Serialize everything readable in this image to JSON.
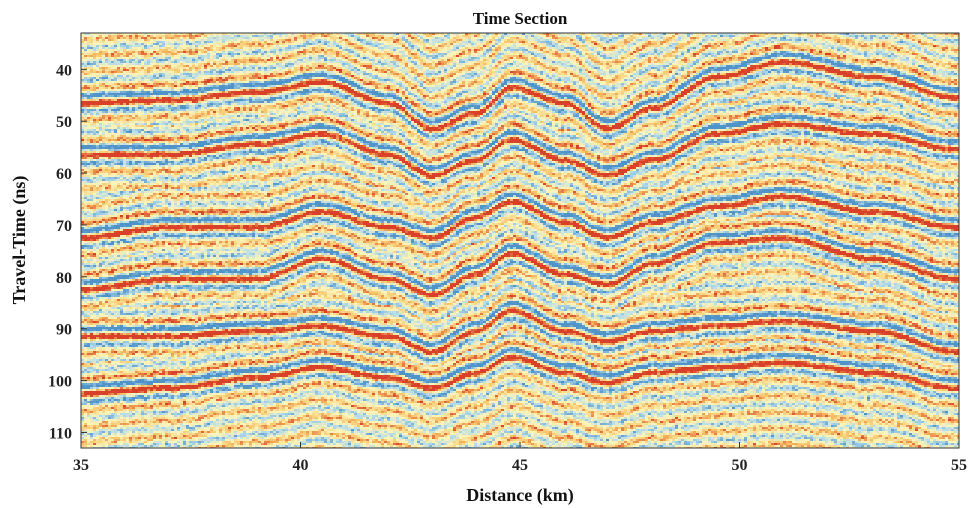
{
  "chart_data": {
    "type": "heatmap",
    "title": "Time Section",
    "xlabel": "Distance (km)",
    "ylabel": "Travel-Time (ns)",
    "xlim": [
      35,
      55
    ],
    "ylim": [
      33,
      113
    ],
    "y_reversed": true,
    "xticks": [
      35,
      40,
      45,
      50,
      55
    ],
    "yticks": [
      40,
      50,
      60,
      70,
      80,
      90,
      100,
      110
    ],
    "grid": false,
    "legend": "none",
    "colormap": {
      "negative": "#4f93c8",
      "light_negative": "#b6dcea",
      "background": "#fbf3b8",
      "light_positive": "#f7c56a",
      "positive": "#d8402a"
    },
    "reflectors": {
      "x": [
        35,
        37,
        39,
        40.5,
        42,
        43,
        44,
        44.8,
        46,
        47,
        48,
        49.5,
        51,
        53,
        55
      ],
      "horizons": [
        {
          "t": [
            46,
            45.5,
            44,
            42,
            46,
            51,
            48,
            43,
            46,
            51,
            47,
            41,
            38,
            41,
            45
          ]
        },
        {
          "t": [
            56,
            56,
            54,
            52,
            56,
            60,
            57,
            53,
            57,
            60,
            57,
            52,
            50,
            52,
            55
          ]
        },
        {
          "t": [
            72,
            70,
            70,
            67,
            70,
            72,
            68,
            65,
            69,
            72,
            69,
            66,
            64,
            67,
            70
          ]
        },
        {
          "t": [
            82,
            80,
            80,
            76,
            80,
            83,
            79,
            75,
            79,
            81,
            77,
            73,
            72,
            76,
            80
          ]
        },
        {
          "t": [
            91,
            91,
            90,
            89,
            91,
            94,
            90,
            86,
            90,
            92,
            90,
            89,
            88,
            90,
            94
          ]
        },
        {
          "t": [
            102,
            101,
            99,
            97,
            99,
            101,
            98,
            95,
            98,
            100,
            98,
            97,
            96,
            98,
            101
          ]
        }
      ]
    }
  }
}
